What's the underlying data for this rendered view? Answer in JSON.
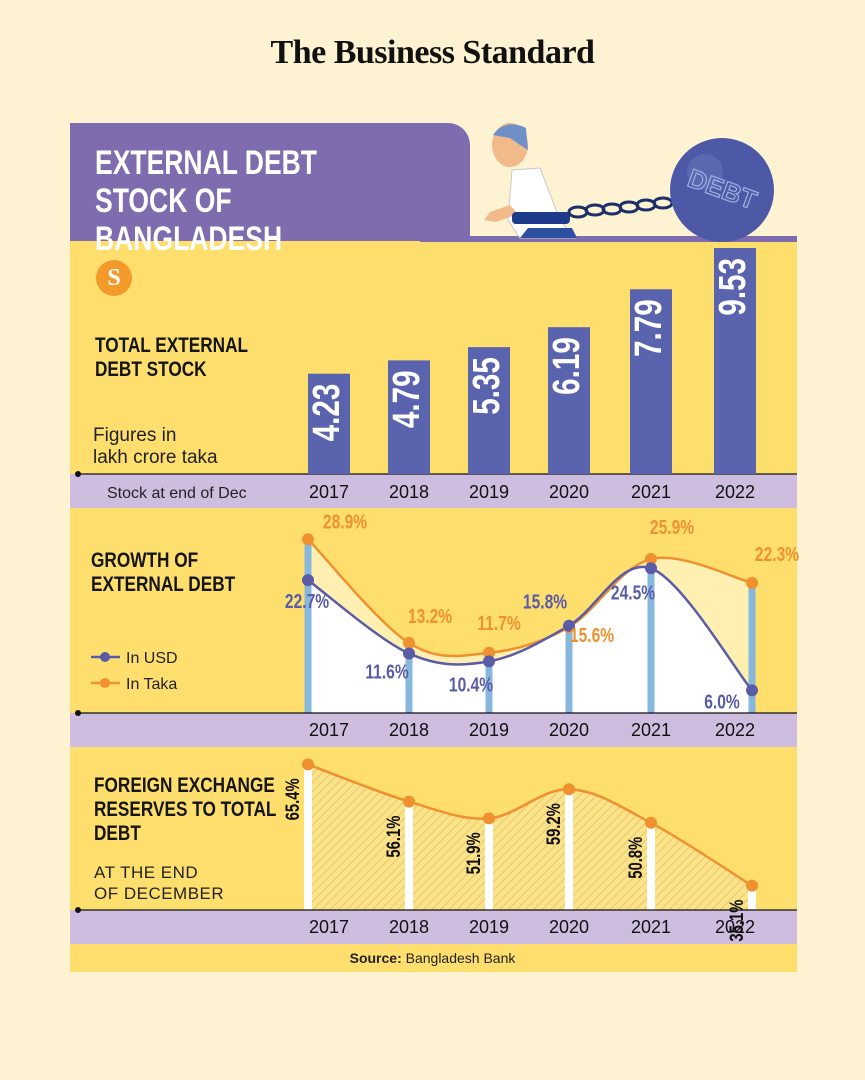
{
  "masthead": "The Business Standard",
  "title": "EXTERNAL DEBT STOCK OF BANGLADESH",
  "illustration": {
    "ball_text": "DEBT"
  },
  "logo_glyph": "S",
  "colors": {
    "bar": "#5a63ae",
    "usd": "#5a5ca8",
    "taka": "#f0912f",
    "stem": "#86b7dc",
    "band": "#cfbddf",
    "panel": "#fedf6d"
  },
  "sections": {
    "stock": {
      "title_line1": "TOTAL EXTERNAL",
      "title_line2": "DEBT STOCK",
      "note_line1": "Figures in",
      "note_line2": "lakh crore taka",
      "axis_label": "Stock at end of Dec"
    },
    "growth": {
      "title_line1": "GROWTH OF",
      "title_line2": "EXTERNAL DEBT",
      "legend_usd": "In USD",
      "legend_taka": "In Taka"
    },
    "reserves": {
      "title_line1": "FOREIGN EXCHANGE",
      "title_line2": "RESERVES TO TOTAL",
      "title_line3": "DEBT",
      "note_line1": "AT THE END",
      "note_line2": "OF DECEMBER"
    }
  },
  "source_label": "Source:",
  "source_text": "Bangladesh Bank",
  "chart_data": [
    {
      "type": "bar",
      "title": "TOTAL EXTERNAL DEBT STOCK",
      "categories": [
        "2017",
        "2018",
        "2019",
        "2020",
        "2021",
        "2022"
      ],
      "values": [
        4.23,
        4.79,
        5.35,
        6.19,
        7.79,
        9.53
      ],
      "labels": [
        "4.23",
        "4.79",
        "5.35",
        "6.19",
        "7.79",
        "9.53"
      ],
      "unit": "lakh crore taka"
    },
    {
      "type": "line",
      "title": "GROWTH OF EXTERNAL DEBT",
      "categories": [
        "2017",
        "2018",
        "2019",
        "2020",
        "2021",
        "2022"
      ],
      "series": [
        {
          "name": "In USD",
          "values": [
            22.7,
            11.6,
            10.4,
            15.8,
            24.5,
            6.0
          ],
          "labels": [
            "22.7%",
            "11.6%",
            "10.4%",
            "15.8%",
            "24.5%",
            "6.0%"
          ]
        },
        {
          "name": "In Taka",
          "values": [
            28.9,
            13.2,
            11.7,
            15.6,
            25.9,
            22.3
          ],
          "labels": [
            "28.9%",
            "13.2%",
            "11.7%",
            "15.6%",
            "25.9%",
            "22.3%"
          ]
        }
      ],
      "legend": "left"
    },
    {
      "type": "area",
      "title": "FOREIGN EXCHANGE RESERVES TO TOTAL DEBT",
      "categories": [
        "2017",
        "2018",
        "2019",
        "2020",
        "2021",
        "2022"
      ],
      "values": [
        65.4,
        56.1,
        51.9,
        59.2,
        50.8,
        35.1
      ],
      "labels": [
        "65.4%",
        "56.1%",
        "51.9%",
        "59.2%",
        "50.8%",
        "35.1%"
      ]
    }
  ]
}
